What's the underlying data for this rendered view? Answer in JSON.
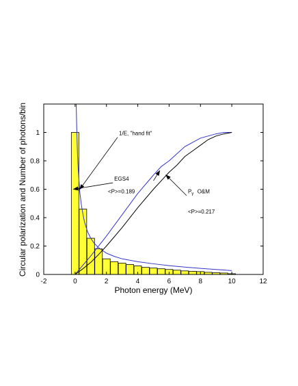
{
  "chart_data": {
    "type": "bar",
    "xlabel": "Photon energy (MeV)",
    "ylabel": "Circular polarization and Number of photons/bin",
    "xlim": [
      -2,
      12
    ],
    "ylim": [
      0,
      1.2
    ],
    "xticks": [
      -2,
      0,
      2,
      4,
      6,
      8,
      10,
      12
    ],
    "yticks": [
      0,
      0.2,
      0.4,
      0.6,
      0.8,
      1
    ],
    "grid": false,
    "bar_color": "#ffff33",
    "bar_width": 0.48,
    "bars": {
      "x": [
        0,
        0.5,
        1,
        1.5,
        2,
        2.5,
        3,
        3.5,
        4,
        4.5,
        5,
        5.5,
        6,
        6.5,
        7,
        7.5,
        8,
        8.5,
        9,
        9.5,
        10
      ],
      "values": [
        1.0,
        0.46,
        0.255,
        0.18,
        0.11,
        0.09,
        0.08,
        0.07,
        0.06,
        0.05,
        0.045,
        0.04,
        0.035,
        0.03,
        0.025,
        0.022,
        0.02,
        0.015,
        0.012,
        0.01,
        0.005
      ]
    },
    "series": [
      {
        "label": "1/E, \"hand fit\"",
        "color": "#3333cc",
        "x": [
          0.07,
          0.1,
          0.15,
          0.2,
          0.3,
          0.4,
          0.5,
          0.6,
          0.8,
          1,
          1.2,
          1.5,
          2,
          2.5,
          3,
          4,
          5,
          6,
          7,
          8,
          9,
          10
        ],
        "y": [
          1.2,
          1.05,
          0.86,
          0.74,
          0.58,
          0.49,
          0.425,
          0.37,
          0.3,
          0.255,
          0.222,
          0.188,
          0.15,
          0.127,
          0.11,
          0.09,
          0.075,
          0.062,
          0.052,
          0.043,
          0.035,
          0.027
        ]
      },
      {
        "label": "EGS4",
        "color": "#3333cc",
        "x": [
          0,
          1,
          2,
          3,
          4,
          5,
          5.5,
          6,
          7,
          8,
          9,
          9.5,
          10
        ],
        "y": [
          0,
          0.13,
          0.27,
          0.42,
          0.57,
          0.7,
          0.76,
          0.8,
          0.9,
          0.96,
          0.99,
          1.0,
          1.0
        ]
      },
      {
        "label": "P_γ O&M",
        "color": "#000000",
        "x": [
          0,
          0.5,
          1,
          1.5,
          2,
          3,
          4,
          5,
          5.5,
          6,
          6.5,
          7,
          7.5,
          8,
          8.5,
          9,
          9.5,
          10
        ],
        "y": [
          0,
          0.04,
          0.085,
          0.14,
          0.2,
          0.33,
          0.47,
          0.6,
          0.66,
          0.72,
          0.77,
          0.83,
          0.87,
          0.91,
          0.95,
          0.975,
          0.99,
          1.0
        ]
      }
    ],
    "annotations": [
      {
        "text": "1/E, \"hand fit\"",
        "x": 2.8,
        "y": 0.98,
        "arrow_to": [
          0.3,
          0.6
        ]
      },
      {
        "text": "EGS4",
        "x": 2.5,
        "y": 0.66,
        "arrow_to": [
          -0.1,
          0.6
        ]
      },
      {
        "text": "<P>=0.189",
        "x": 2.1,
        "y": 0.57
      },
      {
        "text": "P",
        "sub": "γ",
        "x": 7.2,
        "y": 0.57,
        "arrow_to": [
          5.8,
          0.7
        ]
      },
      {
        "text": "O&M",
        "x": 7.8,
        "y": 0.57
      },
      {
        "text": "<P>=0.217",
        "x": 7.2,
        "y": 0.43
      },
      {
        "text": "",
        "x": 5.0,
        "y": 0.66,
        "arrow_to": [
          5.4,
          0.73
        ]
      }
    ]
  }
}
